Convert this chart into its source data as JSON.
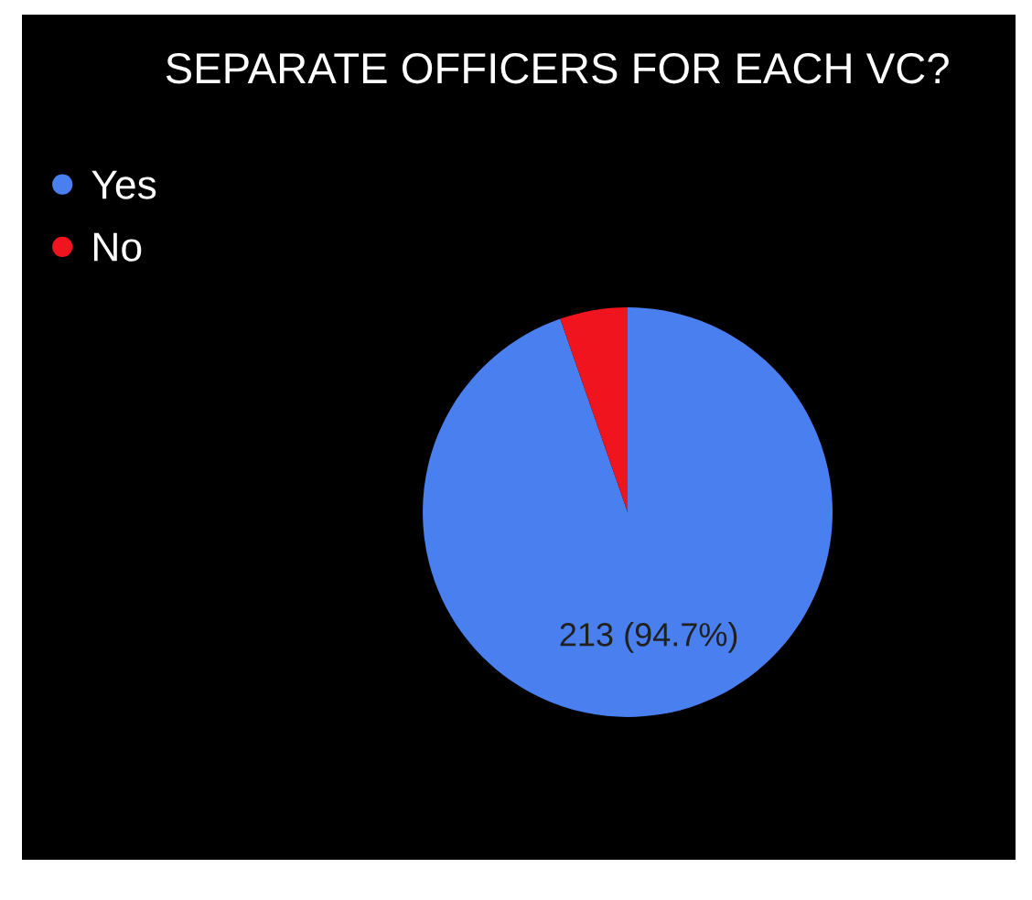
{
  "chart_data": {
    "type": "pie",
    "title": "SEPARATE OFFICERS FOR EACH VC?",
    "categories": [
      "Yes",
      "No"
    ],
    "values": [
      213,
      12
    ],
    "colors": [
      "#4a7fef",
      "#f0141e"
    ],
    "value_labels": [
      "213 (94.7%)",
      null
    ],
    "legend": "top left"
  }
}
